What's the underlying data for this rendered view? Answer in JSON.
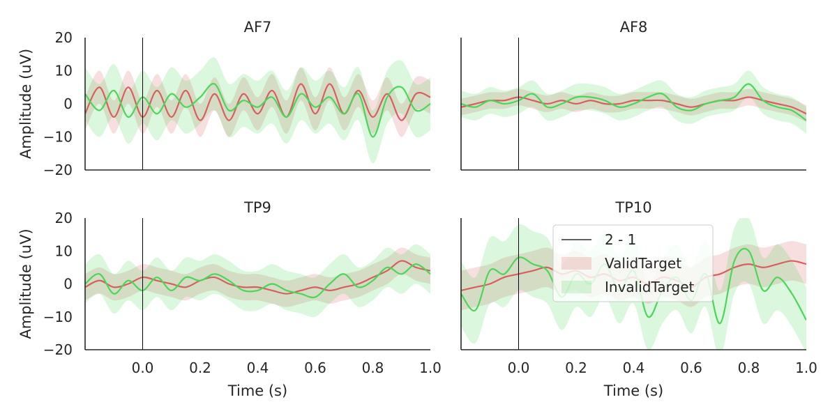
{
  "chart_data": {
    "type": "line",
    "xlabel": "Time (s)",
    "ylabel": "Amplitude (uV)",
    "xlim": [
      -0.2,
      1.0
    ],
    "ylim": [
      -20,
      20
    ],
    "xticks": [
      0.0,
      0.2,
      0.4,
      0.6,
      0.8,
      1.0
    ],
    "xtick_labels": [
      "0.0",
      "0.2",
      "0.4",
      "0.6",
      "0.8",
      "1.0"
    ],
    "yticks": [
      20,
      10,
      0,
      -10,
      -20
    ],
    "ytick_labels": [
      "20",
      "10",
      "0",
      "−10",
      "−20"
    ],
    "vline_x": 0.0,
    "legend": {
      "location": "upper-right of TP10 panel",
      "entries": [
        {
          "label": "2 - 1",
          "kind": "line",
          "color": "#000000"
        },
        {
          "label": "ValidTarget",
          "kind": "patch",
          "color": "#d65f5f"
        },
        {
          "label": "InvalidTarget",
          "kind": "patch",
          "color": "#4bd65a"
        }
      ]
    },
    "colors": {
      "ValidTarget": "#d65f5f",
      "InvalidTarget": "#4bd65a"
    },
    "panels": [
      {
        "title": "AF7",
        "x": [
          -0.2,
          -0.15,
          -0.1,
          -0.05,
          0.0,
          0.05,
          0.1,
          0.15,
          0.2,
          0.25,
          0.3,
          0.35,
          0.4,
          0.45,
          0.5,
          0.55,
          0.6,
          0.65,
          0.7,
          0.75,
          0.8,
          0.85,
          0.9,
          0.95,
          1.0
        ],
        "series": [
          {
            "name": "ValidTarget",
            "values": [
              -3,
              5,
              -4,
              5,
              -4,
              4,
              -4,
              4,
              -5,
              3,
              -5,
              3,
              -3,
              4,
              -4,
              6,
              -3,
              6,
              -3,
              4,
              -4,
              3,
              -5,
              3,
              2
            ],
            "band": 5
          },
          {
            "name": "InvalidTarget",
            "values": [
              3,
              -2,
              4,
              -4,
              2,
              -3,
              3,
              -1,
              2,
              6,
              -2,
              1,
              -1,
              2,
              -4,
              3,
              -1,
              2,
              -3,
              3,
              -10,
              2,
              5,
              -2,
              0
            ],
            "band": 8
          }
        ]
      },
      {
        "title": "AF8",
        "x": [
          -0.2,
          -0.15,
          -0.1,
          -0.05,
          0.0,
          0.05,
          0.1,
          0.15,
          0.2,
          0.25,
          0.3,
          0.35,
          0.4,
          0.45,
          0.5,
          0.55,
          0.6,
          0.65,
          0.7,
          0.75,
          0.8,
          0.85,
          0.9,
          0.95,
          1.0
        ],
        "series": [
          {
            "name": "ValidTarget",
            "values": [
              -1,
              0,
              1,
              1,
              2,
              1,
              0,
              1,
              0,
              1,
              0,
              0,
              1,
              1,
              1,
              0,
              -1,
              0,
              1,
              1,
              2,
              1,
              0,
              -1,
              -3
            ],
            "band": 2.5
          },
          {
            "name": "InvalidTarget",
            "values": [
              0,
              -1,
              1,
              0,
              1,
              3,
              -1,
              0,
              2,
              2,
              1,
              -1,
              0,
              2,
              3,
              -1,
              -2,
              0,
              1,
              2,
              6,
              1,
              -1,
              -2,
              -5
            ],
            "band": 4
          }
        ]
      },
      {
        "title": "TP9",
        "x": [
          -0.2,
          -0.15,
          -0.1,
          -0.05,
          0.0,
          0.05,
          0.1,
          0.15,
          0.2,
          0.25,
          0.3,
          0.35,
          0.4,
          0.45,
          0.5,
          0.55,
          0.6,
          0.65,
          0.7,
          0.75,
          0.8,
          0.85,
          0.9,
          0.95,
          1.0
        ],
        "series": [
          {
            "name": "ValidTarget",
            "values": [
              -1,
              1,
              -1,
              0,
              2,
              1,
              0,
              -1,
              1,
              2,
              0,
              -1,
              -1,
              -2,
              -3,
              -2,
              -1,
              -2,
              -1,
              0,
              2,
              4,
              7,
              5,
              4
            ],
            "band": 4
          },
          {
            "name": "InvalidTarget",
            "values": [
              0,
              3,
              -3,
              1,
              -2,
              2,
              -2,
              2,
              1,
              3,
              1,
              -2,
              -2,
              0,
              -2,
              -3,
              -4,
              0,
              3,
              -1,
              1,
              5,
              3,
              6,
              3
            ],
            "band": 6
          }
        ]
      },
      {
        "title": "TP10",
        "x": [
          -0.2,
          -0.15,
          -0.1,
          -0.05,
          0.0,
          0.05,
          0.1,
          0.15,
          0.2,
          0.25,
          0.3,
          0.35,
          0.4,
          0.45,
          0.5,
          0.55,
          0.6,
          0.65,
          0.7,
          0.75,
          0.8,
          0.85,
          0.9,
          0.95,
          1.0
        ],
        "series": [
          {
            "name": "ValidTarget",
            "values": [
              -2,
              -1,
              0,
              2,
              3,
              4,
              5,
              3,
              4,
              2,
              3,
              1,
              2,
              0,
              2,
              1,
              -1,
              2,
              3,
              5,
              6,
              5,
              6,
              7,
              6
            ],
            "band": 6
          },
          {
            "name": "InvalidTarget",
            "values": [
              -3,
              -8,
              4,
              3,
              8,
              6,
              4,
              -4,
              3,
              0,
              6,
              -2,
              4,
              -10,
              -2,
              2,
              -5,
              3,
              -12,
              7,
              10,
              -2,
              2,
              -3,
              -11
            ],
            "band": 10
          }
        ]
      }
    ]
  }
}
